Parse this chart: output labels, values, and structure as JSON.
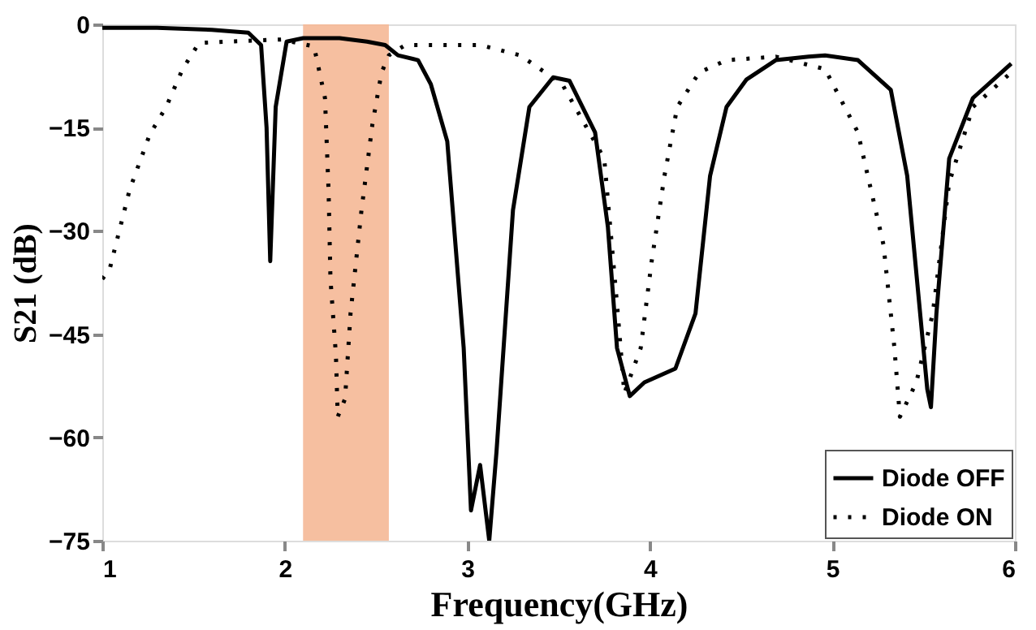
{
  "chart_data": {
    "type": "line",
    "xlabel": "Frequency(GHz)",
    "ylabel": "S21 (dB)",
    "xlim": [
      1,
      6
    ],
    "xticks": [
      1,
      2,
      3,
      4,
      5,
      6
    ],
    "ylim": [
      -75,
      0
    ],
    "yticks": [
      -75,
      -60,
      -45,
      -30,
      -15,
      0
    ],
    "grid": false,
    "legend": "bottom right",
    "bands": [
      {
        "axis": "x",
        "from": 2.1,
        "to": 2.57,
        "color": "#f5b896"
      }
    ],
    "series": [
      {
        "name": "Diode OFF",
        "color": "#000000",
        "line_style": "solid",
        "x": [
          1.0,
          1.3,
          1.6,
          1.8,
          1.87,
          1.9,
          1.92,
          1.95,
          2.01,
          2.1,
          2.3,
          2.45,
          2.55,
          2.62,
          2.73,
          2.8,
          2.89,
          2.98,
          3.02,
          3.07,
          3.12,
          3.16,
          3.25,
          3.34,
          3.47,
          3.56,
          3.7,
          3.77,
          3.82,
          3.89,
          3.97,
          4.14,
          4.25,
          4.31,
          4.33,
          4.42,
          4.53,
          4.69,
          4.87,
          4.96,
          5.14,
          5.32,
          5.41,
          5.52,
          5.54,
          5.57,
          5.64,
          5.77,
          5.98
        ],
        "values": [
          -0.5,
          -0.5,
          -0.8,
          -1.2,
          -3,
          -15,
          -34.4,
          -12,
          -2.5,
          -2,
          -2,
          -2.5,
          -3,
          -4.5,
          -5.2,
          -8.7,
          -17,
          -47,
          -70.6,
          -64,
          -75,
          -62,
          -27,
          -12,
          -7.7,
          -8.2,
          -15.7,
          -29.4,
          -47,
          -54,
          -52,
          -50,
          -42,
          -27,
          -22,
          -12,
          -8,
          -5.2,
          -4.7,
          -4.5,
          -5.2,
          -9.5,
          -22,
          -53,
          -55.6,
          -42,
          -19.5,
          -10.7,
          -5.7
        ]
      },
      {
        "name": "Diode ON",
        "color": "#000000",
        "line_style": "dotted",
        "x": [
          1.0,
          1.04,
          1.15,
          1.26,
          1.35,
          1.44,
          1.53,
          1.69,
          1.98,
          2.16,
          2.22,
          2.24,
          2.25,
          2.28,
          2.29,
          2.33,
          2.36,
          2.42,
          2.48,
          2.53,
          2.57,
          2.66,
          3.07,
          3.29,
          3.52,
          3.75,
          3.82,
          3.86,
          3.95,
          4.01,
          4.08,
          4.15,
          4.27,
          4.42,
          4.69,
          4.96,
          5.14,
          5.28,
          5.34,
          5.37,
          5.46,
          5.55,
          5.64,
          5.77,
          6.0
        ],
        "values": [
          -37,
          -35.6,
          -24,
          -16,
          -12,
          -6.5,
          -2.7,
          -2.5,
          -2.2,
          -3.2,
          -10.7,
          -24.4,
          -37,
          -48,
          -57,
          -54.4,
          -42,
          -27,
          -14.5,
          -7,
          -4.5,
          -3,
          -3,
          -4.5,
          -8.7,
          -19.5,
          -40.6,
          -53.6,
          -47,
          -34.4,
          -22,
          -12,
          -7,
          -5.2,
          -4.7,
          -6.5,
          -15.7,
          -32,
          -47,
          -57,
          -52,
          -42,
          -23,
          -12,
          -6.5
        ]
      }
    ]
  }
}
